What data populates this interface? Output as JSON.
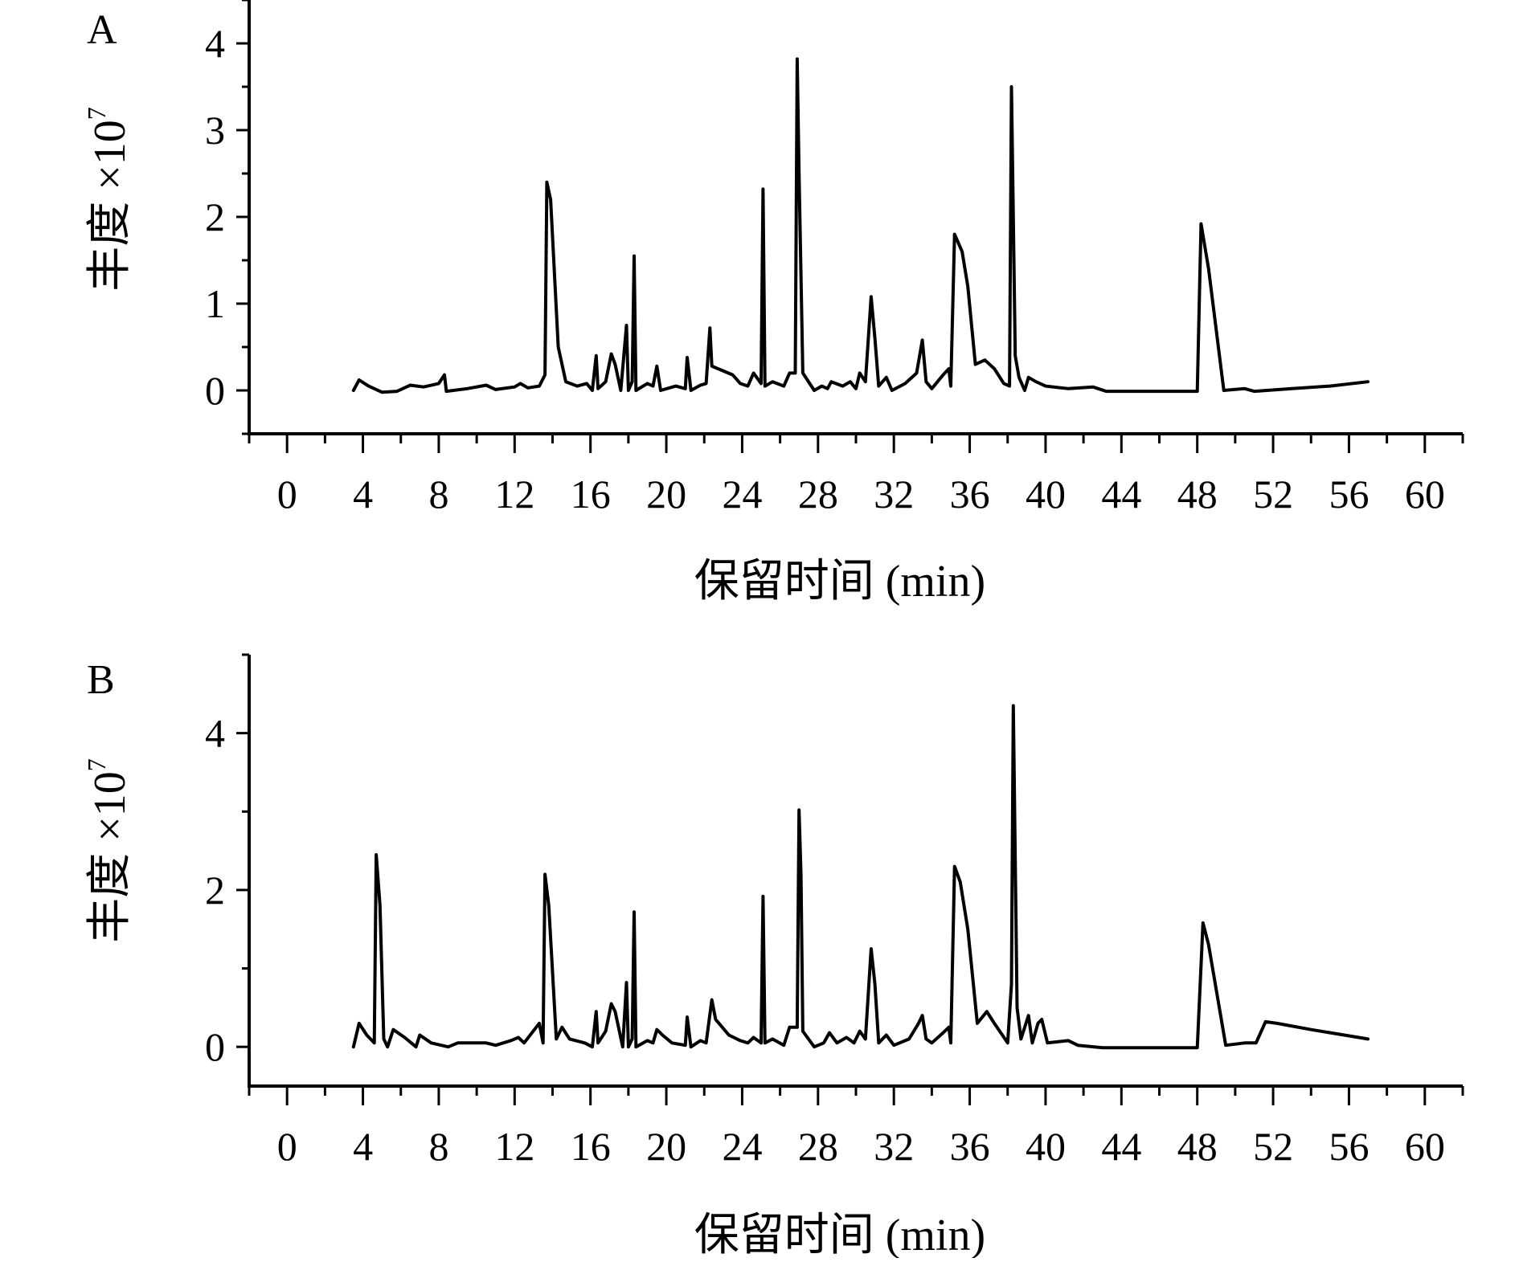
{
  "chart_data": [
    {
      "type": "line",
      "panel_label": "A",
      "xlabel": "保留时间 (min)",
      "ylabel_main": "丰度 ×10",
      "ylabel_exponent": "7",
      "xlim": [
        -2,
        62
      ],
      "ylim": [
        -0.5,
        4.5
      ],
      "xticks": [
        0,
        4,
        8,
        12,
        16,
        20,
        24,
        28,
        32,
        36,
        40,
        44,
        48,
        52,
        56,
        60
      ],
      "xtick_labels": [
        "0",
        "4",
        "8",
        "12",
        "16",
        "20",
        "24",
        "28",
        "32",
        "36",
        "40",
        "44",
        "48",
        "52",
        "56",
        "60"
      ],
      "yticks": [
        0,
        1,
        2,
        3,
        4
      ],
      "ytick_labels": [
        "0",
        "1",
        "2",
        "3",
        "4"
      ],
      "grid": false,
      "line_color": "#000000",
      "series": [
        {
          "points": [
            [
              3.5,
              0.0
            ],
            [
              3.8,
              0.12
            ],
            [
              4.3,
              0.05
            ],
            [
              5.0,
              -0.02
            ],
            [
              5.8,
              -0.01
            ],
            [
              6.5,
              0.06
            ],
            [
              7.2,
              0.04
            ],
            [
              8.0,
              0.08
            ],
            [
              8.3,
              0.18
            ],
            [
              8.4,
              -0.01
            ],
            [
              9.5,
              0.02
            ],
            [
              10.5,
              0.06
            ],
            [
              11.0,
              0.01
            ],
            [
              12.0,
              0.04
            ],
            [
              12.3,
              0.08
            ],
            [
              12.7,
              0.03
            ],
            [
              13.3,
              0.05
            ],
            [
              13.6,
              0.18
            ],
            [
              13.7,
              2.4
            ],
            [
              13.9,
              2.2
            ],
            [
              14.3,
              0.5
            ],
            [
              14.7,
              0.1
            ],
            [
              15.3,
              0.05
            ],
            [
              15.8,
              0.08
            ],
            [
              16.1,
              0.0
            ],
            [
              16.3,
              0.4
            ],
            [
              16.4,
              0.02
            ],
            [
              16.8,
              0.1
            ],
            [
              17.1,
              0.42
            ],
            [
              17.3,
              0.3
            ],
            [
              17.6,
              0.0
            ],
            [
              17.9,
              0.75
            ],
            [
              18.0,
              0.0
            ],
            [
              18.2,
              0.1
            ],
            [
              18.3,
              1.55
            ],
            [
              18.4,
              0.0
            ],
            [
              19.0,
              0.08
            ],
            [
              19.3,
              0.05
            ],
            [
              19.5,
              0.28
            ],
            [
              19.7,
              0.0
            ],
            [
              20.5,
              0.05
            ],
            [
              21.0,
              0.02
            ],
            [
              21.1,
              0.38
            ],
            [
              21.3,
              0.0
            ],
            [
              21.8,
              0.06
            ],
            [
              22.1,
              0.08
            ],
            [
              22.3,
              0.72
            ],
            [
              22.4,
              0.28
            ],
            [
              23.5,
              0.18
            ],
            [
              23.9,
              0.08
            ],
            [
              24.3,
              0.05
            ],
            [
              24.6,
              0.2
            ],
            [
              25.0,
              0.08
            ],
            [
              25.1,
              2.32
            ],
            [
              25.2,
              0.05
            ],
            [
              25.6,
              0.1
            ],
            [
              26.2,
              0.05
            ],
            [
              26.5,
              0.2
            ],
            [
              26.8,
              0.2
            ],
            [
              26.9,
              3.82
            ],
            [
              27.0,
              2.5
            ],
            [
              27.2,
              0.2
            ],
            [
              27.8,
              0.0
            ],
            [
              28.2,
              0.05
            ],
            [
              28.5,
              0.02
            ],
            [
              28.7,
              0.1
            ],
            [
              29.3,
              0.05
            ],
            [
              29.7,
              0.1
            ],
            [
              30.0,
              0.02
            ],
            [
              30.2,
              0.2
            ],
            [
              30.5,
              0.1
            ],
            [
              30.8,
              1.08
            ],
            [
              31.0,
              0.6
            ],
            [
              31.2,
              0.05
            ],
            [
              31.6,
              0.15
            ],
            [
              31.9,
              0.0
            ],
            [
              32.6,
              0.08
            ],
            [
              33.2,
              0.2
            ],
            [
              33.5,
              0.58
            ],
            [
              33.7,
              0.1
            ],
            [
              34.0,
              0.02
            ],
            [
              34.6,
              0.18
            ],
            [
              34.9,
              0.25
            ],
            [
              35.0,
              0.05
            ],
            [
              35.2,
              1.8
            ],
            [
              35.6,
              1.6
            ],
            [
              35.9,
              1.2
            ],
            [
              36.3,
              0.3
            ],
            [
              36.8,
              0.35
            ],
            [
              37.3,
              0.25
            ],
            [
              37.8,
              0.08
            ],
            [
              38.1,
              0.05
            ],
            [
              38.2,
              3.5
            ],
            [
              38.4,
              0.4
            ],
            [
              38.6,
              0.15
            ],
            [
              38.9,
              0.0
            ],
            [
              39.1,
              0.15
            ],
            [
              39.5,
              0.1
            ],
            [
              40.0,
              0.05
            ],
            [
              41.2,
              0.02
            ],
            [
              42.5,
              0.04
            ],
            [
              43.2,
              -0.01
            ],
            [
              45.0,
              -0.01
            ],
            [
              48.0,
              -0.01
            ],
            [
              48.2,
              1.92
            ],
            [
              48.6,
              1.4
            ],
            [
              49.4,
              0.0
            ],
            [
              50.5,
              0.02
            ],
            [
              51.0,
              -0.01
            ],
            [
              53.0,
              0.02
            ],
            [
              55.0,
              0.05
            ],
            [
              57.0,
              0.1
            ]
          ]
        }
      ]
    },
    {
      "type": "line",
      "panel_label": "B",
      "xlabel": "保留时间 (min)",
      "ylabel_main": "丰度 ×10",
      "ylabel_exponent": "7",
      "xlim": [
        -2,
        62
      ],
      "ylim": [
        -0.5,
        5.0
      ],
      "xticks": [
        0,
        4,
        8,
        12,
        16,
        20,
        24,
        28,
        32,
        36,
        40,
        44,
        48,
        52,
        56,
        60
      ],
      "xtick_labels": [
        "0",
        "4",
        "8",
        "12",
        "16",
        "20",
        "24",
        "28",
        "32",
        "36",
        "40",
        "44",
        "48",
        "52",
        "56",
        "60"
      ],
      "yticks": [
        0,
        2,
        4
      ],
      "ytick_labels": [
        "0",
        "2",
        "4"
      ],
      "yticks_minor": [
        1,
        3,
        5
      ],
      "grid": false,
      "line_color": "#000000",
      "series": [
        {
          "points": [
            [
              3.5,
              0.0
            ],
            [
              3.8,
              0.3
            ],
            [
              4.2,
              0.15
            ],
            [
              4.6,
              0.05
            ],
            [
              4.7,
              2.45
            ],
            [
              4.9,
              1.8
            ],
            [
              5.1,
              0.1
            ],
            [
              5.3,
              0.0
            ],
            [
              5.6,
              0.22
            ],
            [
              6.2,
              0.12
            ],
            [
              6.8,
              0.0
            ],
            [
              7.0,
              0.15
            ],
            [
              7.6,
              0.05
            ],
            [
              8.5,
              0.0
            ],
            [
              9.0,
              0.05
            ],
            [
              10.5,
              0.05
            ],
            [
              11.0,
              0.02
            ],
            [
              11.8,
              0.08
            ],
            [
              12.2,
              0.12
            ],
            [
              12.5,
              0.05
            ],
            [
              13.3,
              0.3
            ],
            [
              13.5,
              0.05
            ],
            [
              13.6,
              2.2
            ],
            [
              13.8,
              1.8
            ],
            [
              14.2,
              0.1
            ],
            [
              14.5,
              0.25
            ],
            [
              14.9,
              0.1
            ],
            [
              15.7,
              0.05
            ],
            [
              16.1,
              0.0
            ],
            [
              16.3,
              0.45
            ],
            [
              16.4,
              0.05
            ],
            [
              16.8,
              0.2
            ],
            [
              17.1,
              0.55
            ],
            [
              17.3,
              0.45
            ],
            [
              17.7,
              0.0
            ],
            [
              17.9,
              0.82
            ],
            [
              18.0,
              0.0
            ],
            [
              18.2,
              0.1
            ],
            [
              18.3,
              1.72
            ],
            [
              18.4,
              0.0
            ],
            [
              19.0,
              0.08
            ],
            [
              19.3,
              0.05
            ],
            [
              19.5,
              0.22
            ],
            [
              19.8,
              0.15
            ],
            [
              20.3,
              0.05
            ],
            [
              21.0,
              0.02
            ],
            [
              21.1,
              0.38
            ],
            [
              21.3,
              0.0
            ],
            [
              21.8,
              0.08
            ],
            [
              22.1,
              0.05
            ],
            [
              22.4,
              0.6
            ],
            [
              22.6,
              0.35
            ],
            [
              23.3,
              0.15
            ],
            [
              23.9,
              0.08
            ],
            [
              24.3,
              0.05
            ],
            [
              24.6,
              0.12
            ],
            [
              25.0,
              0.05
            ],
            [
              25.1,
              1.92
            ],
            [
              25.2,
              0.05
            ],
            [
              25.6,
              0.1
            ],
            [
              26.2,
              0.02
            ],
            [
              26.5,
              0.25
            ],
            [
              26.9,
              0.25
            ],
            [
              27.0,
              3.02
            ],
            [
              27.1,
              2.2
            ],
            [
              27.2,
              0.2
            ],
            [
              27.8,
              0.0
            ],
            [
              28.3,
              0.05
            ],
            [
              28.6,
              0.18
            ],
            [
              29.0,
              0.05
            ],
            [
              29.5,
              0.12
            ],
            [
              29.9,
              0.05
            ],
            [
              30.2,
              0.2
            ],
            [
              30.5,
              0.1
            ],
            [
              30.8,
              1.25
            ],
            [
              31.0,
              0.8
            ],
            [
              31.2,
              0.05
            ],
            [
              31.6,
              0.15
            ],
            [
              32.0,
              0.02
            ],
            [
              32.8,
              0.1
            ],
            [
              33.3,
              0.3
            ],
            [
              33.5,
              0.4
            ],
            [
              33.7,
              0.1
            ],
            [
              34.0,
              0.05
            ],
            [
              34.6,
              0.18
            ],
            [
              34.9,
              0.25
            ],
            [
              35.0,
              0.05
            ],
            [
              35.2,
              2.3
            ],
            [
              35.5,
              2.1
            ],
            [
              35.9,
              1.5
            ],
            [
              36.4,
              0.3
            ],
            [
              36.9,
              0.45
            ],
            [
              37.3,
              0.3
            ],
            [
              38.0,
              0.05
            ],
            [
              38.2,
              0.8
            ],
            [
              38.3,
              4.35
            ],
            [
              38.5,
              0.5
            ],
            [
              38.7,
              0.1
            ],
            [
              38.9,
              0.25
            ],
            [
              39.1,
              0.4
            ],
            [
              39.3,
              0.05
            ],
            [
              39.6,
              0.3
            ],
            [
              39.8,
              0.35
            ],
            [
              40.1,
              0.05
            ],
            [
              41.2,
              0.08
            ],
            [
              41.7,
              0.02
            ],
            [
              43.0,
              -0.01
            ],
            [
              45.0,
              -0.01
            ],
            [
              48.0,
              -0.01
            ],
            [
              48.3,
              1.58
            ],
            [
              48.6,
              1.3
            ],
            [
              49.5,
              0.02
            ],
            [
              50.5,
              0.05
            ],
            [
              51.1,
              0.05
            ],
            [
              51.6,
              0.32
            ],
            [
              52.2,
              0.3
            ],
            [
              54.0,
              0.22
            ],
            [
              57.0,
              0.1
            ]
          ]
        }
      ]
    }
  ]
}
